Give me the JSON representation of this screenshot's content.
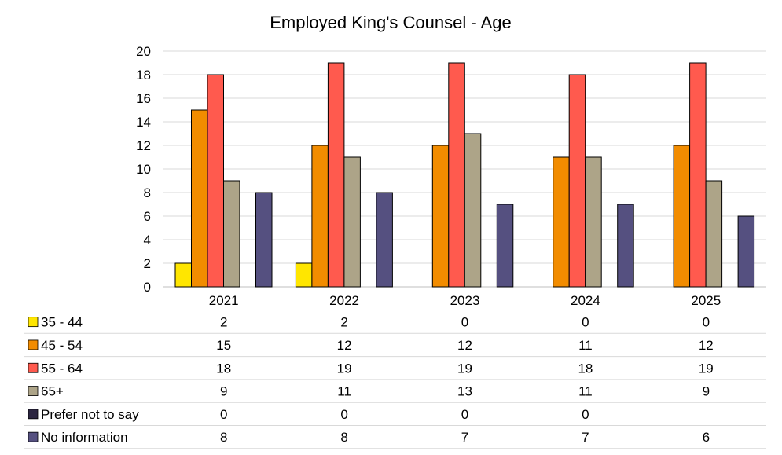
{
  "chart_data": {
    "type": "bar",
    "title": "Employed King's Counsel - Age",
    "xlabel": "",
    "ylabel": "",
    "ylim": [
      0,
      20
    ],
    "yticks": [
      0,
      2,
      4,
      6,
      8,
      10,
      12,
      14,
      16,
      18,
      20
    ],
    "grid": true,
    "legend_placement": "bottom data table",
    "categories": [
      "2021",
      "2022",
      "2023",
      "2024",
      "2025"
    ],
    "series": [
      {
        "name": "35 - 44",
        "color": "#FFE600",
        "values": [
          2,
          2,
          0,
          0,
          0
        ]
      },
      {
        "name": "45 - 54",
        "color": "#F28C00",
        "values": [
          15,
          12,
          12,
          11,
          12
        ]
      },
      {
        "name": "55 - 64",
        "color": "#FF5A4E",
        "values": [
          18,
          19,
          19,
          18,
          19
        ]
      },
      {
        "name": "65+",
        "color": "#ADA488",
        "values": [
          9,
          11,
          13,
          11,
          9
        ]
      },
      {
        "name": "Prefer not to say",
        "color": "#2B2540",
        "values": [
          0,
          0,
          0,
          0,
          null
        ]
      },
      {
        "name": "No information",
        "color": "#555080",
        "values": [
          8,
          8,
          7,
          7,
          6
        ]
      }
    ]
  }
}
